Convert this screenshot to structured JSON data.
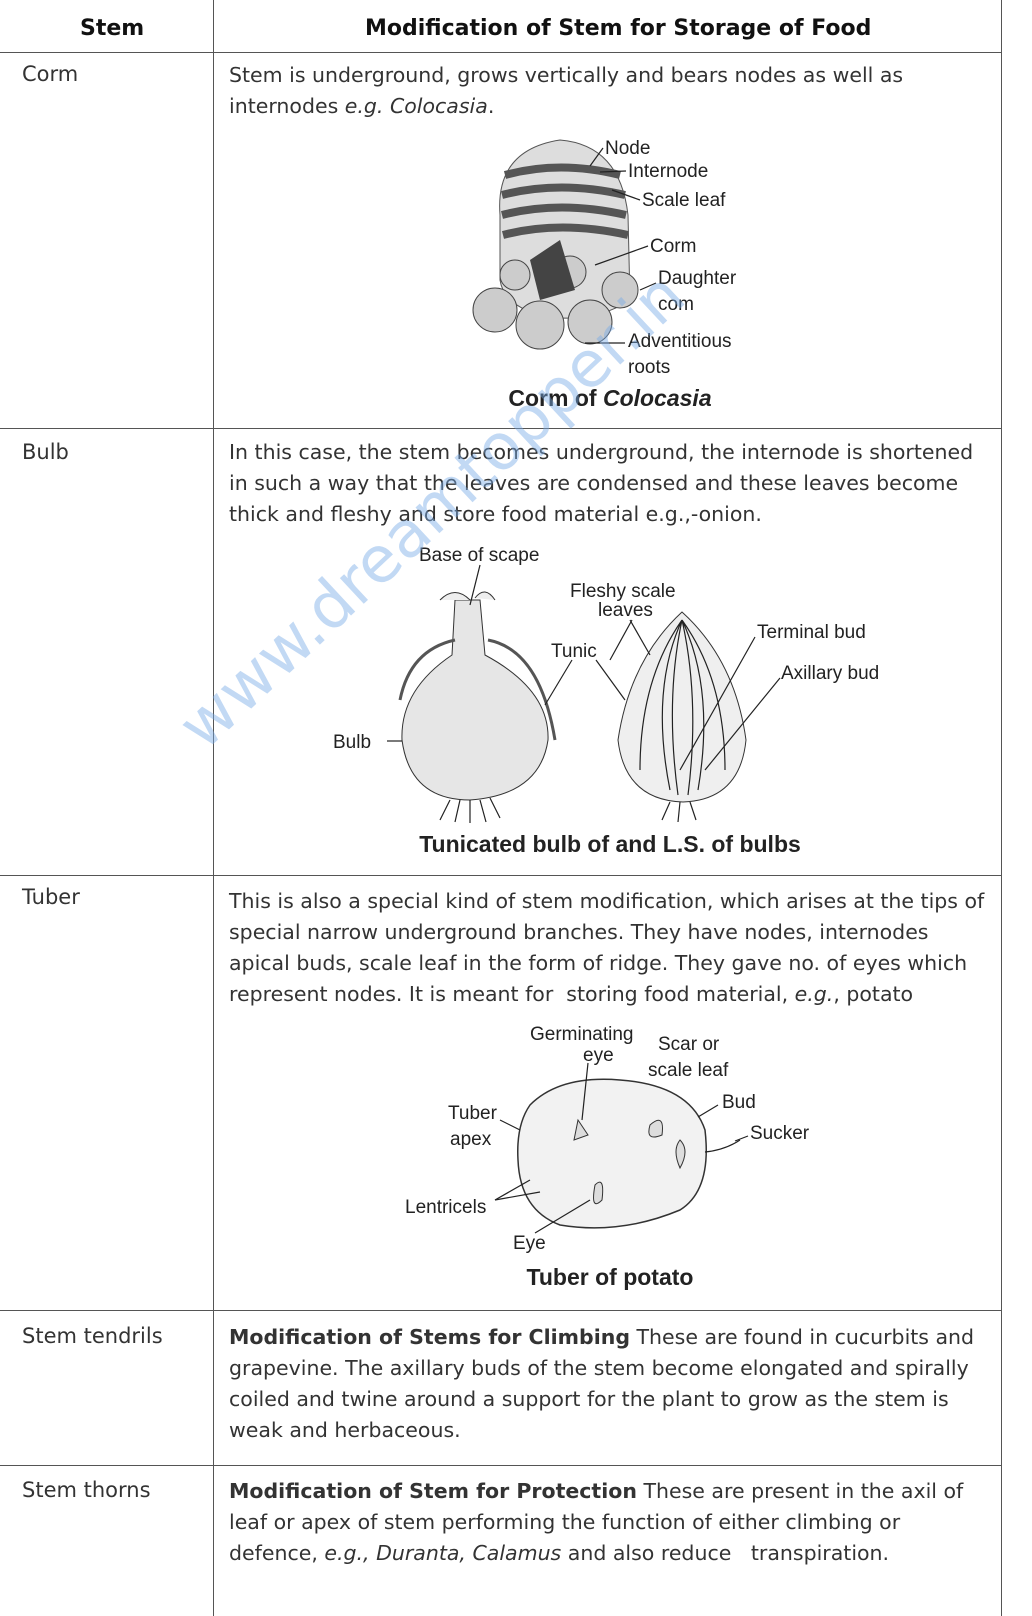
{
  "header": {
    "stem": "Stem",
    "modification": "Modification of Stem for Storage of Food"
  },
  "rows": [
    {
      "stem": "Corm",
      "text": [
        "Stem is underground, grows vertically and bears nodes as well as internodes ",
        "e.g. Colocasia",
        "."
      ],
      "figure": {
        "labels": [
          "Node",
          "Internode",
          "Scale leaf",
          "Corm",
          "Daughter",
          "com",
          "Adventitious",
          "roots"
        ],
        "caption": [
          "Corm of ",
          "Colocasia"
        ]
      }
    },
    {
      "stem": "Bulb",
      "text": [
        "In this case, the stem becomes underground, the internode is shortened in such a way that the leaves are condensed and these leaves become thick and fleshy and store food material e.g.,-onion."
      ],
      "figure": {
        "labels": [
          "Base of scape",
          "Fleshy scale",
          "leaves",
          "Tunic",
          "Terminal bud",
          "Axillary bud",
          "Bulb"
        ],
        "caption": [
          "Tunicated bulb of and L.S.  of bulbs"
        ]
      }
    },
    {
      "stem": "Tuber",
      "text": [
        "This is also a special kind of stem modification, which arises at the tips of special narrow underground branches. They have nodes, internodes apical buds, scale leaf in the form of ridge. They gave no. of eyes which represent nodes. It is meant for  storing food material, ",
        "e.g.",
        ", potato"
      ],
      "figure": {
        "labels": [
          "Germinating",
          "eye",
          "Scar or",
          "scale leaf",
          "Tuber",
          "apex",
          "Bud",
          "Sucker",
          "Lentricels",
          "Eye"
        ],
        "caption": [
          "Tuber of potato"
        ]
      }
    },
    {
      "stem": "Stem tendrils",
      "heading": "Modification of Stems for Climbing",
      "text": [
        " These are found in cucurbits and grapevine. The axillary buds of the stem become elongated and spirally coiled and twine around a support for the plant to grow as the stem is weak and herbaceous."
      ]
    },
    {
      "stem": "Stem thorns",
      "heading": "Modification of Stem for Protection",
      "text": [
        " These are present in the axil of leaf or apex of stem performing the function of either climbing or defence, ",
        "e.g., Duranta, Calamus",
        " and also reduce   transpiration."
      ]
    }
  ],
  "watermark": "www.dreamtopper.in"
}
